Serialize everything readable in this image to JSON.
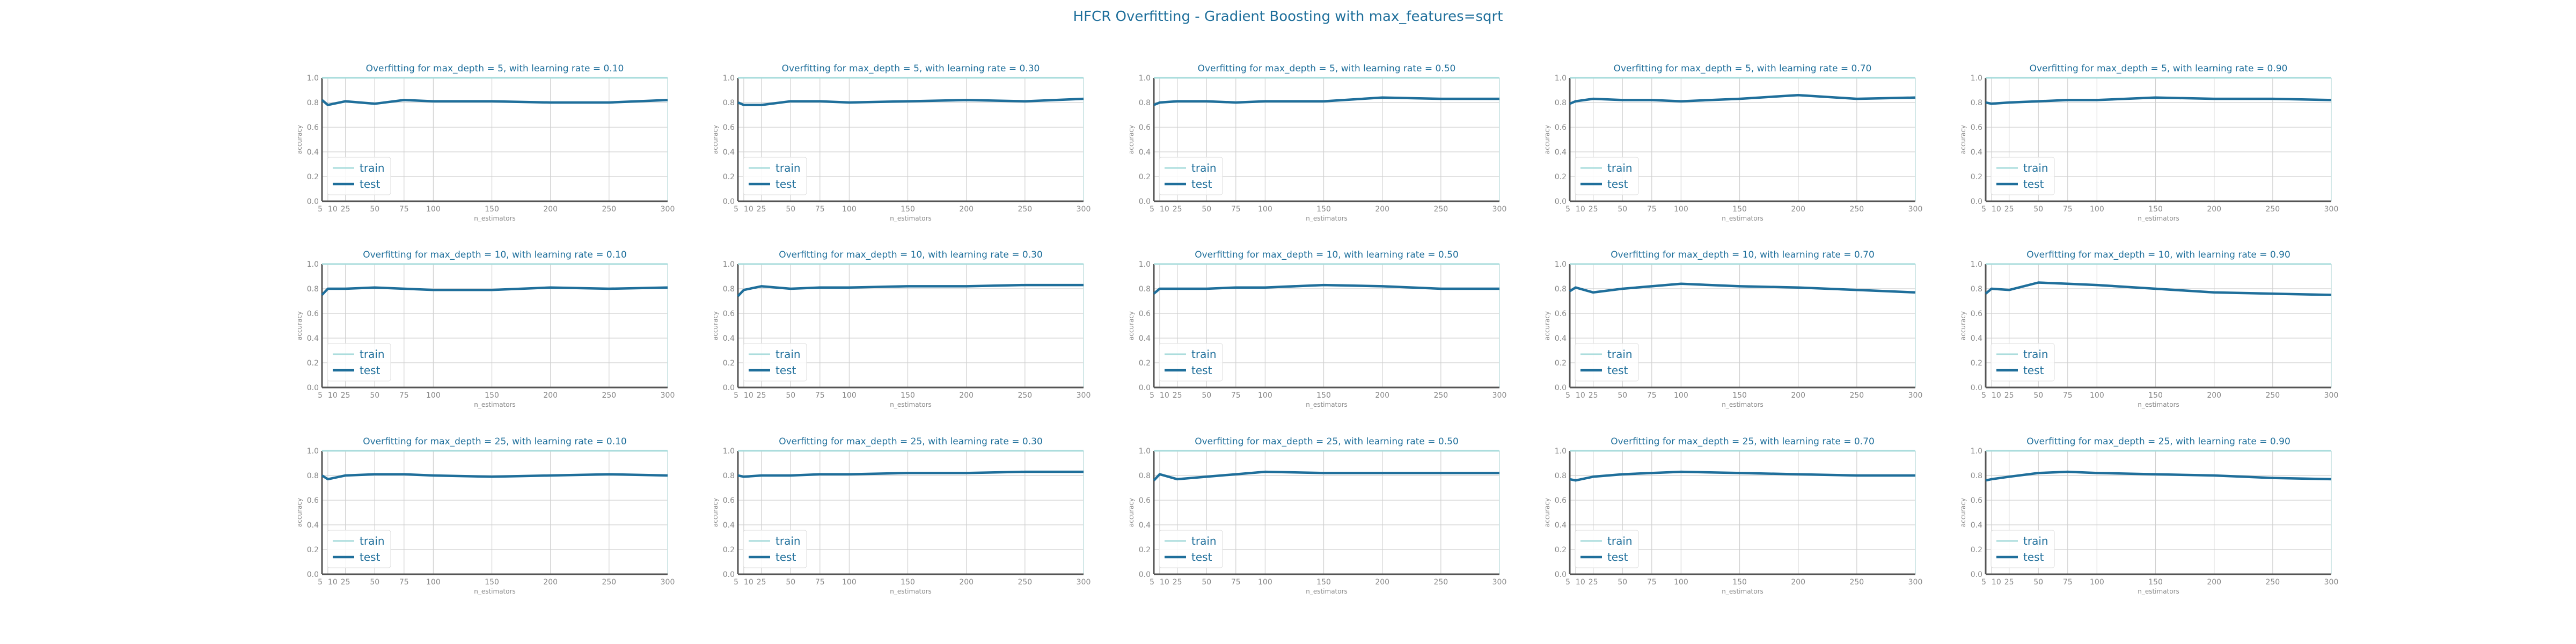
{
  "figure": {
    "suptitle": "HFCR Overfitting - Gradient Boosting with max_features=sqrt",
    "colors": {
      "train": "#a9dcdc",
      "test": "#1f6f9b",
      "title": "#1f6f9b",
      "tick": "#888888",
      "grid": "#d0d0d0"
    }
  },
  "chart_data": [
    {
      "type": "line",
      "title": "Overfitting for max_depth = 5, with learning rate = 0.10",
      "xlabel": "n_estimators",
      "ylabel": "accuracy",
      "xlim": [
        5,
        300
      ],
      "ylim": [
        0,
        1
      ],
      "grid": true,
      "legend": "lower-left",
      "x": [
        5,
        10,
        25,
        50,
        75,
        100,
        150,
        200,
        250,
        300
      ],
      "x_tick_labels": [
        "5",
        "10",
        "25",
        "50",
        "75",
        "100",
        "150",
        "200",
        "250",
        "300"
      ],
      "y_tick_labels": [
        "0.0",
        "0.2",
        "0.4",
        "0.6",
        "0.8",
        "1.0"
      ],
      "series": [
        {
          "name": "train",
          "values": [
            1.0,
            1.0,
            1.0,
            1.0,
            1.0,
            1.0,
            1.0,
            1.0,
            1.0,
            1.0
          ]
        },
        {
          "name": "test",
          "values": [
            0.82,
            0.78,
            0.81,
            0.79,
            0.82,
            0.81,
            0.81,
            0.8,
            0.8,
            0.82
          ]
        }
      ]
    },
    {
      "type": "line",
      "title": "Overfitting for max_depth = 5, with learning rate = 0.30",
      "xlabel": "n_estimators",
      "ylabel": "accuracy",
      "xlim": [
        5,
        300
      ],
      "ylim": [
        0,
        1
      ],
      "grid": true,
      "legend": "lower-left",
      "x": [
        5,
        10,
        25,
        50,
        75,
        100,
        150,
        200,
        250,
        300
      ],
      "x_tick_labels": [
        "5",
        "10",
        "25",
        "50",
        "75",
        "100",
        "150",
        "200",
        "250",
        "300"
      ],
      "y_tick_labels": [
        "0.0",
        "0.2",
        "0.4",
        "0.6",
        "0.8",
        "1.0"
      ],
      "series": [
        {
          "name": "train",
          "values": [
            1.0,
            1.0,
            1.0,
            1.0,
            1.0,
            1.0,
            1.0,
            1.0,
            1.0,
            1.0
          ]
        },
        {
          "name": "test",
          "values": [
            0.8,
            0.78,
            0.78,
            0.81,
            0.81,
            0.8,
            0.81,
            0.82,
            0.81,
            0.83
          ]
        }
      ]
    },
    {
      "type": "line",
      "title": "Overfitting for max_depth = 5, with learning rate = 0.50",
      "xlabel": "n_estimators",
      "ylabel": "accuracy",
      "xlim": [
        5,
        300
      ],
      "ylim": [
        0,
        1
      ],
      "grid": true,
      "legend": "lower-left",
      "x": [
        5,
        10,
        25,
        50,
        75,
        100,
        150,
        200,
        250,
        300
      ],
      "x_tick_labels": [
        "5",
        "10",
        "25",
        "50",
        "75",
        "100",
        "150",
        "200",
        "250",
        "300"
      ],
      "y_tick_labels": [
        "0.0",
        "0.2",
        "0.4",
        "0.6",
        "0.8",
        "1.0"
      ],
      "series": [
        {
          "name": "train",
          "values": [
            1.0,
            1.0,
            1.0,
            1.0,
            1.0,
            1.0,
            1.0,
            1.0,
            1.0,
            1.0
          ]
        },
        {
          "name": "test",
          "values": [
            0.78,
            0.8,
            0.81,
            0.81,
            0.8,
            0.81,
            0.81,
            0.84,
            0.83,
            0.83
          ]
        }
      ]
    },
    {
      "type": "line",
      "title": "Overfitting for max_depth = 5, with learning rate = 0.70",
      "xlabel": "n_estimators",
      "ylabel": "accuracy",
      "xlim": [
        5,
        300
      ],
      "ylim": [
        0,
        1
      ],
      "grid": true,
      "legend": "lower-left",
      "x": [
        5,
        10,
        25,
        50,
        75,
        100,
        150,
        200,
        250,
        300
      ],
      "x_tick_labels": [
        "5",
        "10",
        "25",
        "50",
        "75",
        "100",
        "150",
        "200",
        "250",
        "300"
      ],
      "y_tick_labels": [
        "0.0",
        "0.2",
        "0.4",
        "0.6",
        "0.8",
        "1.0"
      ],
      "series": [
        {
          "name": "train",
          "values": [
            1.0,
            1.0,
            1.0,
            1.0,
            1.0,
            1.0,
            1.0,
            1.0,
            1.0,
            1.0
          ]
        },
        {
          "name": "test",
          "values": [
            0.79,
            0.81,
            0.83,
            0.82,
            0.82,
            0.81,
            0.83,
            0.86,
            0.83,
            0.84
          ]
        }
      ]
    },
    {
      "type": "line",
      "title": "Overfitting for max_depth = 5, with learning rate = 0.90",
      "xlabel": "n_estimators",
      "ylabel": "accuracy",
      "xlim": [
        5,
        300
      ],
      "ylim": [
        0,
        1
      ],
      "grid": true,
      "legend": "lower-left",
      "x": [
        5,
        10,
        25,
        50,
        75,
        100,
        150,
        200,
        250,
        300
      ],
      "x_tick_labels": [
        "5",
        "10",
        "25",
        "50",
        "75",
        "100",
        "150",
        "200",
        "250",
        "300"
      ],
      "y_tick_labels": [
        "0.0",
        "0.2",
        "0.4",
        "0.6",
        "0.8",
        "1.0"
      ],
      "series": [
        {
          "name": "train",
          "values": [
            1.0,
            1.0,
            1.0,
            1.0,
            1.0,
            1.0,
            1.0,
            1.0,
            1.0,
            1.0
          ]
        },
        {
          "name": "test",
          "values": [
            0.8,
            0.79,
            0.8,
            0.81,
            0.82,
            0.82,
            0.84,
            0.83,
            0.83,
            0.82
          ]
        }
      ]
    },
    {
      "type": "line",
      "title": "Overfitting for max_depth = 10, with learning rate = 0.10",
      "xlabel": "n_estimators",
      "ylabel": "accuracy",
      "xlim": [
        5,
        300
      ],
      "ylim": [
        0,
        1
      ],
      "grid": true,
      "legend": "lower-left",
      "x": [
        5,
        10,
        25,
        50,
        75,
        100,
        150,
        200,
        250,
        300
      ],
      "x_tick_labels": [
        "5",
        "10",
        "25",
        "50",
        "75",
        "100",
        "150",
        "200",
        "250",
        "300"
      ],
      "y_tick_labels": [
        "0.0",
        "0.2",
        "0.4",
        "0.6",
        "0.8",
        "1.0"
      ],
      "series": [
        {
          "name": "train",
          "values": [
            1.0,
            1.0,
            1.0,
            1.0,
            1.0,
            1.0,
            1.0,
            1.0,
            1.0,
            1.0
          ]
        },
        {
          "name": "test",
          "values": [
            0.75,
            0.8,
            0.8,
            0.81,
            0.8,
            0.79,
            0.79,
            0.81,
            0.8,
            0.81
          ]
        }
      ]
    },
    {
      "type": "line",
      "title": "Overfitting for max_depth = 10, with learning rate = 0.30",
      "xlabel": "n_estimators",
      "ylabel": "accuracy",
      "xlim": [
        5,
        300
      ],
      "ylim": [
        0,
        1
      ],
      "grid": true,
      "legend": "lower-left",
      "x": [
        5,
        10,
        25,
        50,
        75,
        100,
        150,
        200,
        250,
        300
      ],
      "x_tick_labels": [
        "5",
        "10",
        "25",
        "50",
        "75",
        "100",
        "150",
        "200",
        "250",
        "300"
      ],
      "y_tick_labels": [
        "0.0",
        "0.2",
        "0.4",
        "0.6",
        "0.8",
        "1.0"
      ],
      "series": [
        {
          "name": "train",
          "values": [
            1.0,
            1.0,
            1.0,
            1.0,
            1.0,
            1.0,
            1.0,
            1.0,
            1.0,
            1.0
          ]
        },
        {
          "name": "test",
          "values": [
            0.74,
            0.79,
            0.82,
            0.8,
            0.81,
            0.81,
            0.82,
            0.82,
            0.83,
            0.83
          ]
        }
      ]
    },
    {
      "type": "line",
      "title": "Overfitting for max_depth = 10, with learning rate = 0.50",
      "xlabel": "n_estimators",
      "ylabel": "accuracy",
      "xlim": [
        5,
        300
      ],
      "ylim": [
        0,
        1
      ],
      "grid": true,
      "legend": "lower-left",
      "x": [
        5,
        10,
        25,
        50,
        75,
        100,
        150,
        200,
        250,
        300
      ],
      "x_tick_labels": [
        "5",
        "10",
        "25",
        "50",
        "75",
        "100",
        "150",
        "200",
        "250",
        "300"
      ],
      "y_tick_labels": [
        "0.0",
        "0.2",
        "0.4",
        "0.6",
        "0.8",
        "1.0"
      ],
      "series": [
        {
          "name": "train",
          "values": [
            1.0,
            1.0,
            1.0,
            1.0,
            1.0,
            1.0,
            1.0,
            1.0,
            1.0,
            1.0
          ]
        },
        {
          "name": "test",
          "values": [
            0.76,
            0.8,
            0.8,
            0.8,
            0.81,
            0.81,
            0.83,
            0.82,
            0.8,
            0.8
          ]
        }
      ]
    },
    {
      "type": "line",
      "title": "Overfitting for max_depth = 10, with learning rate = 0.70",
      "xlabel": "n_estimators",
      "ylabel": "accuracy",
      "xlim": [
        5,
        300
      ],
      "ylim": [
        0,
        1
      ],
      "grid": true,
      "legend": "lower-left",
      "x": [
        5,
        10,
        25,
        50,
        75,
        100,
        150,
        200,
        250,
        300
      ],
      "x_tick_labels": [
        "5",
        "10",
        "25",
        "50",
        "75",
        "100",
        "150",
        "200",
        "250",
        "300"
      ],
      "y_tick_labels": [
        "0.0",
        "0.2",
        "0.4",
        "0.6",
        "0.8",
        "1.0"
      ],
      "series": [
        {
          "name": "train",
          "values": [
            1.0,
            1.0,
            1.0,
            1.0,
            1.0,
            1.0,
            1.0,
            1.0,
            1.0,
            1.0
          ]
        },
        {
          "name": "test",
          "values": [
            0.78,
            0.81,
            0.77,
            0.8,
            0.82,
            0.84,
            0.82,
            0.81,
            0.79,
            0.77
          ]
        }
      ]
    },
    {
      "type": "line",
      "title": "Overfitting for max_depth = 10, with learning rate = 0.90",
      "xlabel": "n_estimators",
      "ylabel": "accuracy",
      "xlim": [
        5,
        300
      ],
      "ylim": [
        0,
        1
      ],
      "grid": true,
      "legend": "lower-left",
      "x": [
        5,
        10,
        25,
        50,
        75,
        100,
        150,
        200,
        250,
        300
      ],
      "x_tick_labels": [
        "5",
        "10",
        "25",
        "50",
        "75",
        "100",
        "150",
        "200",
        "250",
        "300"
      ],
      "y_tick_labels": [
        "0.0",
        "0.2",
        "0.4",
        "0.6",
        "0.8",
        "1.0"
      ],
      "series": [
        {
          "name": "train",
          "values": [
            1.0,
            1.0,
            1.0,
            1.0,
            1.0,
            1.0,
            1.0,
            1.0,
            1.0,
            1.0
          ]
        },
        {
          "name": "test",
          "values": [
            0.76,
            0.8,
            0.79,
            0.85,
            0.84,
            0.83,
            0.8,
            0.77,
            0.76,
            0.75
          ]
        }
      ]
    },
    {
      "type": "line",
      "title": "Overfitting for max_depth = 25, with learning rate = 0.10",
      "xlabel": "n_estimators",
      "ylabel": "accuracy",
      "xlim": [
        5,
        300
      ],
      "ylim": [
        0,
        1
      ],
      "grid": true,
      "legend": "lower-left",
      "x": [
        5,
        10,
        25,
        50,
        75,
        100,
        150,
        200,
        250,
        300
      ],
      "x_tick_labels": [
        "5",
        "10",
        "25",
        "50",
        "75",
        "100",
        "150",
        "200",
        "250",
        "300"
      ],
      "y_tick_labels": [
        "0.0",
        "0.2",
        "0.4",
        "0.6",
        "0.8",
        "1.0"
      ],
      "series": [
        {
          "name": "train",
          "values": [
            1.0,
            1.0,
            1.0,
            1.0,
            1.0,
            1.0,
            1.0,
            1.0,
            1.0,
            1.0
          ]
        },
        {
          "name": "test",
          "values": [
            0.8,
            0.77,
            0.8,
            0.81,
            0.81,
            0.8,
            0.79,
            0.8,
            0.81,
            0.8
          ]
        }
      ]
    },
    {
      "type": "line",
      "title": "Overfitting for max_depth = 25, with learning rate = 0.30",
      "xlabel": "n_estimators",
      "ylabel": "accuracy",
      "xlim": [
        5,
        300
      ],
      "ylim": [
        0,
        1
      ],
      "grid": true,
      "legend": "lower-left",
      "x": [
        5,
        10,
        25,
        50,
        75,
        100,
        150,
        200,
        250,
        300
      ],
      "x_tick_labels": [
        "5",
        "10",
        "25",
        "50",
        "75",
        "100",
        "150",
        "200",
        "250",
        "300"
      ],
      "y_tick_labels": [
        "0.0",
        "0.2",
        "0.4",
        "0.6",
        "0.8",
        "1.0"
      ],
      "series": [
        {
          "name": "train",
          "values": [
            1.0,
            1.0,
            1.0,
            1.0,
            1.0,
            1.0,
            1.0,
            1.0,
            1.0,
            1.0
          ]
        },
        {
          "name": "test",
          "values": [
            0.8,
            0.79,
            0.8,
            0.8,
            0.81,
            0.81,
            0.82,
            0.82,
            0.83,
            0.83
          ]
        }
      ]
    },
    {
      "type": "line",
      "title": "Overfitting for max_depth = 25, with learning rate = 0.50",
      "xlabel": "n_estimators",
      "ylabel": "accuracy",
      "xlim": [
        5,
        300
      ],
      "ylim": [
        0,
        1
      ],
      "grid": true,
      "legend": "lower-left",
      "x": [
        5,
        10,
        25,
        50,
        75,
        100,
        150,
        200,
        250,
        300
      ],
      "x_tick_labels": [
        "5",
        "10",
        "25",
        "50",
        "75",
        "100",
        "150",
        "200",
        "250",
        "300"
      ],
      "y_tick_labels": [
        "0.0",
        "0.2",
        "0.4",
        "0.6",
        "0.8",
        "1.0"
      ],
      "series": [
        {
          "name": "train",
          "values": [
            1.0,
            1.0,
            1.0,
            1.0,
            1.0,
            1.0,
            1.0,
            1.0,
            1.0,
            1.0
          ]
        },
        {
          "name": "test",
          "values": [
            0.76,
            0.81,
            0.77,
            0.79,
            0.81,
            0.83,
            0.82,
            0.82,
            0.82,
            0.82
          ]
        }
      ]
    },
    {
      "type": "line",
      "title": "Overfitting for max_depth = 25, with learning rate = 0.70",
      "xlabel": "n_estimators",
      "ylabel": "accuracy",
      "xlim": [
        5,
        300
      ],
      "ylim": [
        0,
        1
      ],
      "grid": true,
      "legend": "lower-left",
      "x": [
        5,
        10,
        25,
        50,
        75,
        100,
        150,
        200,
        250,
        300
      ],
      "x_tick_labels": [
        "5",
        "10",
        "25",
        "50",
        "75",
        "100",
        "150",
        "200",
        "250",
        "300"
      ],
      "y_tick_labels": [
        "0.0",
        "0.2",
        "0.4",
        "0.6",
        "0.8",
        "1.0"
      ],
      "series": [
        {
          "name": "train",
          "values": [
            1.0,
            1.0,
            1.0,
            1.0,
            1.0,
            1.0,
            1.0,
            1.0,
            1.0,
            1.0
          ]
        },
        {
          "name": "test",
          "values": [
            0.77,
            0.76,
            0.79,
            0.81,
            0.82,
            0.83,
            0.82,
            0.81,
            0.8,
            0.8
          ]
        }
      ]
    },
    {
      "type": "line",
      "title": "Overfitting for max_depth = 25, with learning rate = 0.90",
      "xlabel": "n_estimators",
      "ylabel": "accuracy",
      "xlim": [
        5,
        300
      ],
      "ylim": [
        0,
        1
      ],
      "grid": true,
      "legend": "lower-left",
      "x": [
        5,
        10,
        25,
        50,
        75,
        100,
        150,
        200,
        250,
        300
      ],
      "x_tick_labels": [
        "5",
        "10",
        "25",
        "50",
        "75",
        "100",
        "150",
        "200",
        "250",
        "300"
      ],
      "y_tick_labels": [
        "0.0",
        "0.2",
        "0.4",
        "0.6",
        "0.8",
        "1.0"
      ],
      "series": [
        {
          "name": "train",
          "values": [
            1.0,
            1.0,
            1.0,
            1.0,
            1.0,
            1.0,
            1.0,
            1.0,
            1.0,
            1.0
          ]
        },
        {
          "name": "test",
          "values": [
            0.76,
            0.77,
            0.79,
            0.82,
            0.83,
            0.82,
            0.81,
            0.8,
            0.78,
            0.77
          ]
        }
      ]
    }
  ]
}
